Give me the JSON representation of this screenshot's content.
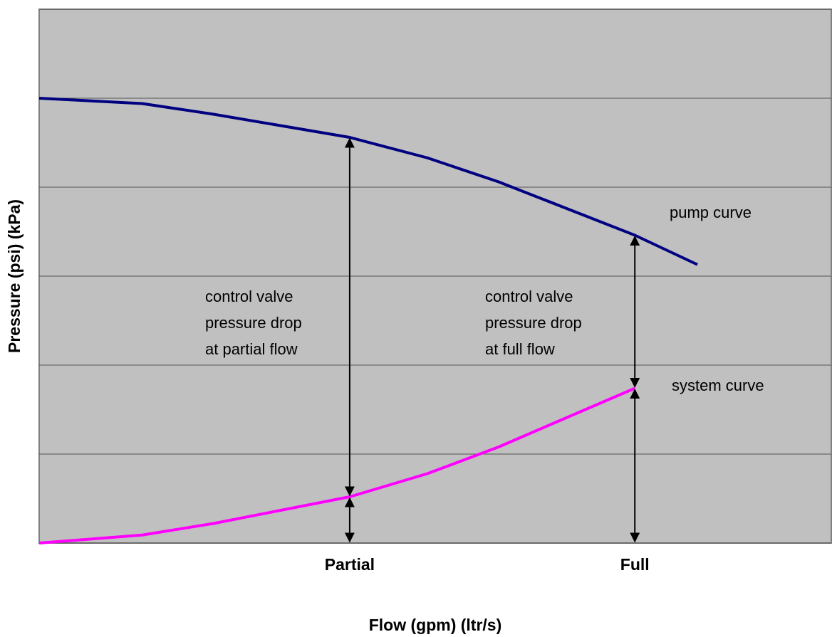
{
  "chart_data": {
    "type": "line",
    "x_label": "Flow (gpm) (ltr/s)",
    "y_label": "Pressure (psi) (kPa)",
    "xlim": [
      0,
      100
    ],
    "ylim": [
      0,
      6
    ],
    "xticks": [
      {
        "value": 39.2,
        "label": "Partial"
      },
      {
        "value": 75.2,
        "label": "Full"
      }
    ],
    "yticks": [
      0,
      1,
      2,
      3,
      4,
      5,
      6
    ],
    "grid": true,
    "series": [
      {
        "name": "pump curve",
        "color": "#000080",
        "x": [
          0,
          13,
          22,
          39.2,
          49,
          58,
          75.2,
          83.1
        ],
        "values": [
          5.0,
          4.94,
          4.82,
          4.56,
          4.33,
          4.06,
          3.46,
          3.13
        ]
      },
      {
        "name": "system curve",
        "color": "#ff00ff",
        "x": [
          0,
          13,
          22,
          39.2,
          49,
          58,
          75.2
        ],
        "values": [
          0,
          0.09,
          0.22,
          0.52,
          0.78,
          1.08,
          1.74
        ]
      }
    ],
    "annotations": [
      {
        "lines": [
          "control valve",
          "pressure drop",
          "at partial flow"
        ]
      },
      {
        "lines": [
          "control valve",
          "pressure drop",
          "at full flow"
        ]
      }
    ]
  }
}
